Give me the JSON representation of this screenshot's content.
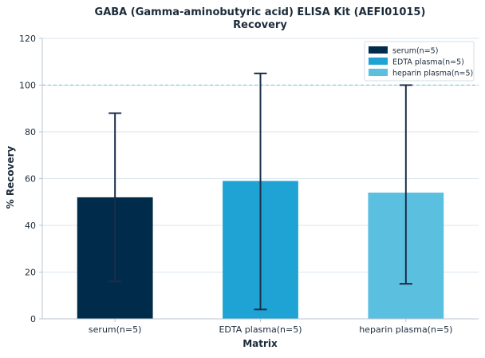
{
  "chart_data": {
    "type": "bar",
    "title": "GABA (Gamma-aminobutyric acid) ELISA Kit (AEFI01015)",
    "subtitle": "Recovery",
    "xlabel": "Matrix",
    "ylabel": "% Recovery",
    "ylim": [
      0,
      120
    ],
    "yticks": [
      0,
      20,
      40,
      60,
      80,
      100,
      120
    ],
    "categories": [
      "serum(n=5)",
      "EDTA plasma(n=5)",
      "heparin plasma(n=5)"
    ],
    "values": [
      52,
      59,
      54
    ],
    "error_low": [
      16,
      4,
      15
    ],
    "error_high": [
      88,
      105,
      100
    ],
    "colors": [
      "#002b4a",
      "#1fa3d4",
      "#5bbfe0"
    ],
    "error_bar_color": "#1a2e4a",
    "reference_line": {
      "y": 100,
      "style": "dashed",
      "color": "#5bbfe0"
    },
    "grid": "horizontal",
    "legend": {
      "placement": "top-right",
      "entries": [
        "serum(n=5)",
        "EDTA plasma(n=5)",
        "heparin plasma(n=5)"
      ]
    }
  }
}
